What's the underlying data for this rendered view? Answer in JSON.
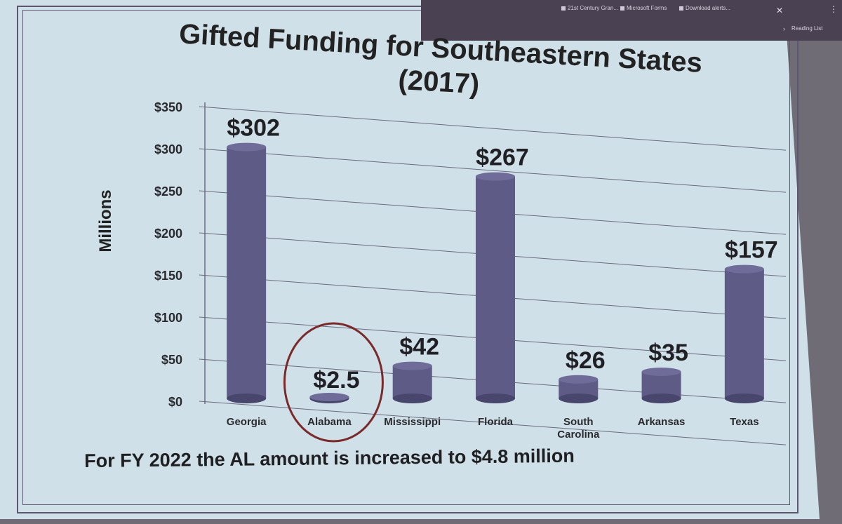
{
  "browser": {
    "tabs": [
      "21st Century Gran...",
      "Microsoft Forms",
      "Download alerts..."
    ],
    "reading_list": "Reading List"
  },
  "colors": {
    "bar": "#5e5b86",
    "bar_dark": "#48466d",
    "grid": "#6d6a80",
    "slide": "#cfe0e8"
  },
  "chart_data": {
    "type": "bar",
    "title": "Gifted Funding for Southeastern States (2017)",
    "xlabel": "",
    "ylabel": "Millions",
    "categories": [
      "Georgia",
      "Alabama",
      "Mississippi",
      "Florida",
      "South Carolina",
      "Arkansas",
      "Texas"
    ],
    "category_lines": [
      [
        "Georgia"
      ],
      [
        "Alabama"
      ],
      [
        "Mississippi"
      ],
      [
        "Florida"
      ],
      [
        "South",
        "Carolina"
      ],
      [
        "Arkansas"
      ],
      [
        "Texas"
      ]
    ],
    "values": [
      302,
      2.5,
      42,
      267,
      26,
      35,
      157
    ],
    "data_labels": [
      "$302",
      "$2.5",
      "$42",
      "$267",
      "$26",
      "$35",
      "$157"
    ],
    "yticks": [
      "$0",
      "$50",
      "$100",
      "$150",
      "$200",
      "$250",
      "$300",
      "$350"
    ],
    "ytick_values": [
      0,
      50,
      100,
      150,
      200,
      250,
      300,
      350
    ],
    "ylim": [
      0,
      350
    ],
    "grid": true,
    "highlighted_category": "Alabama"
  },
  "footnote": "For FY 2022 the AL amount is increased to $4.8 million"
}
